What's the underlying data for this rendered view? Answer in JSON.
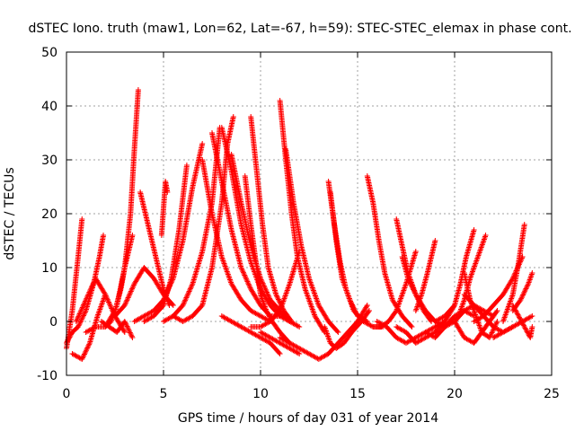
{
  "chart_data": {
    "type": "scatter",
    "title": "dSTEC Iono. truth (maw1, Lon=62, Lat=-67, h=59): STEC-STEC_elemax in phase cont.",
    "xlabel": "GPS time / hours of day 031 of year 2014",
    "ylabel": "dSTEC  / TECUs",
    "xlim": [
      0,
      25
    ],
    "ylim": [
      -10,
      50
    ],
    "xticks": [
      0,
      5,
      10,
      15,
      20,
      25
    ],
    "yticks": [
      -10,
      0,
      10,
      20,
      30,
      40,
      50
    ],
    "grid": true,
    "marker": "+",
    "color": "#ff0000",
    "arcs": [
      {
        "x": [
          0.0,
          0.3,
          0.6,
          0.8
        ],
        "y": [
          -5,
          2,
          12,
          19
        ]
      },
      {
        "x": [
          0.0,
          0.3,
          0.6,
          1.0,
          1.4,
          1.7,
          1.9
        ],
        "y": [
          -4,
          -2,
          -1,
          2,
          7,
          12,
          16
        ]
      },
      {
        "x": [
          0.3,
          0.8,
          1.2,
          1.6,
          2.0
        ],
        "y": [
          -6,
          -7,
          -4,
          1,
          5
        ]
      },
      {
        "x": [
          0.5,
          1.0,
          1.5,
          2.0,
          2.5,
          3.0
        ],
        "y": [
          0,
          4,
          8,
          5,
          1,
          -2
        ]
      },
      {
        "x": [
          1.0,
          1.5,
          2.0,
          2.3,
          2.6,
          3.0,
          3.3,
          3.5,
          3.7
        ],
        "y": [
          -2,
          -1,
          -1,
          0,
          3,
          10,
          20,
          32,
          43
        ]
      },
      {
        "x": [
          1.8,
          2.2,
          2.6,
          3.0,
          3.4
        ],
        "y": [
          0,
          -1,
          -2,
          0,
          -3
        ]
      },
      {
        "x": [
          2.0,
          2.5,
          2.8,
          3.0,
          3.2,
          3.4
        ],
        "y": [
          -1,
          2,
          6,
          10,
          13,
          16
        ]
      },
      {
        "x": [
          2.5,
          3.0,
          3.5,
          4.0,
          4.5,
          5.0,
          5.5
        ],
        "y": [
          1,
          3,
          7,
          10,
          8,
          5,
          3
        ]
      },
      {
        "x": [
          3.8,
          4.2,
          4.6,
          5.0,
          5.3
        ],
        "y": [
          24,
          18,
          12,
          6,
          3
        ]
      },
      {
        "x": [
          3.5,
          4.0,
          4.5,
          5.0,
          5.5,
          6.0,
          6.5,
          7.0
        ],
        "y": [
          0,
          1,
          2,
          4,
          8,
          15,
          25,
          33
        ]
      },
      {
        "x": [
          4.0,
          4.5,
          5.0,
          5.4,
          5.8,
          6.2
        ],
        "y": [
          0,
          1,
          3,
          8,
          17,
          29
        ]
      },
      {
        "x": [
          4.9,
          5.0,
          5.1,
          5.2
        ],
        "y": [
          16,
          21,
          26,
          24
        ]
      },
      {
        "x": [
          5.0,
          5.5,
          6.0,
          6.5,
          7.0,
          7.5,
          7.9
        ],
        "y": [
          0,
          1,
          3,
          7,
          13,
          22,
          36
        ]
      },
      {
        "x": [
          5.5,
          6.0,
          6.5,
          7.0,
          7.5,
          8.0,
          8.3,
          8.6
        ],
        "y": [
          1,
          0,
          1,
          3,
          10,
          22,
          33,
          38
        ]
      },
      {
        "x": [
          7.0,
          7.5,
          8.0,
          8.5,
          9.0,
          9.5,
          10.0,
          10.5
        ],
        "y": [
          30,
          20,
          12,
          7,
          4,
          2,
          1,
          0
        ]
      },
      {
        "x": [
          7.5,
          8.0,
          8.5,
          9.0,
          9.5,
          10.0,
          10.5,
          11.0
        ],
        "y": [
          35,
          26,
          17,
          10,
          6,
          3,
          1,
          1
        ]
      },
      {
        "x": [
          8.0,
          8.5,
          9.0,
          9.5,
          10.0,
          10.5,
          11.0,
          11.5
        ],
        "y": [
          36,
          28,
          18,
          11,
          6,
          3,
          1,
          0
        ]
      },
      {
        "x": [
          8.5,
          9.0,
          9.5,
          10.0,
          10.5,
          11.0,
          11.5,
          12.0
        ],
        "y": [
          31,
          22,
          14,
          8,
          4,
          2,
          0,
          -1
        ]
      },
      {
        "x": [
          9.2,
          9.5,
          9.8,
          10.0,
          10.3,
          10.6,
          11.0,
          11.5
        ],
        "y": [
          27,
          18,
          10,
          5,
          2,
          0,
          -2,
          -4
        ]
      },
      {
        "x": [
          9.5,
          9.8,
          10.1,
          10.4,
          10.8,
          11.2,
          11.6
        ],
        "y": [
          38,
          28,
          18,
          10,
          5,
          2,
          0
        ]
      },
      {
        "x": [
          8.0,
          8.5,
          9.0,
          9.5,
          10.0,
          10.5,
          11.0
        ],
        "y": [
          1,
          0,
          -1,
          -2,
          -3,
          -4,
          -6
        ]
      },
      {
        "x": [
          11.0,
          11.3,
          11.6,
          11.9,
          12.3,
          12.8,
          13.3
        ],
        "y": [
          41,
          30,
          20,
          12,
          6,
          1,
          -2
        ]
      },
      {
        "x": [
          11.3,
          11.7,
          12.1,
          12.5,
          13.0,
          13.5,
          14.0
        ],
        "y": [
          32,
          22,
          14,
          8,
          3,
          0,
          -2
        ]
      },
      {
        "x": [
          9.5,
          10.0,
          10.5,
          11.0,
          11.5,
          12.0
        ],
        "y": [
          -1,
          -1,
          0,
          2,
          7,
          13
        ]
      },
      {
        "x": [
          11.0,
          11.5,
          12.0,
          12.5,
          13.0,
          13.5,
          14.0,
          14.5,
          15.0,
          15.5
        ],
        "y": [
          -3,
          -4,
          -5,
          -6,
          -7,
          -6,
          -4,
          -2,
          0,
          3
        ]
      },
      {
        "x": [
          10.0,
          10.5,
          11.0,
          11.5,
          12.0
        ],
        "y": [
          -2,
          -3,
          -4,
          -5,
          -6
        ]
      },
      {
        "x": [
          13.5,
          13.8,
          14.1,
          14.4,
          14.8,
          15.3,
          15.8,
          16.3
        ],
        "y": [
          26,
          18,
          11,
          6,
          2,
          0,
          -1,
          -1
        ]
      },
      {
        "x": [
          13.3,
          13.6,
          13.9,
          14.3,
          14.7,
          15.2,
          15.6
        ],
        "y": [
          -1,
          -4,
          -5,
          -4,
          -2,
          0,
          2
        ]
      },
      {
        "x": [
          13.6,
          13.9,
          14.2,
          14.6,
          15.0,
          15.5
        ],
        "y": [
          24,
          15,
          8,
          4,
          1,
          0
        ]
      },
      {
        "x": [
          15.5,
          15.8,
          16.1,
          16.4,
          16.8,
          17.3,
          17.8
        ],
        "y": [
          27,
          22,
          15,
          9,
          4,
          1,
          -1
        ]
      },
      {
        "x": [
          15.8,
          16.2,
          16.6,
          17.0,
          17.5,
          18.0
        ],
        "y": [
          -1,
          -1,
          0,
          2,
          7,
          13
        ]
      },
      {
        "x": [
          16.0,
          16.5,
          17.0,
          17.5,
          18.0,
          18.5,
          19.0,
          19.5
        ],
        "y": [
          0,
          -1,
          -3,
          -4,
          -3,
          -2,
          -1,
          0
        ]
      },
      {
        "x": [
          17.0,
          17.3,
          17.6,
          18.0,
          18.5,
          19.0,
          19.5
        ],
        "y": [
          19,
          14,
          9,
          5,
          2,
          0,
          -1
        ]
      },
      {
        "x": [
          17.0,
          17.5,
          18.0,
          18.5,
          19.0,
          19.5,
          20.0
        ],
        "y": [
          -1,
          -2,
          -4,
          -3,
          -2,
          0,
          3
        ]
      },
      {
        "x": [
          17.3,
          17.6,
          18.0,
          18.4,
          18.8
        ],
        "y": [
          12,
          8,
          5,
          2,
          0
        ]
      },
      {
        "x": [
          18.0,
          18.3,
          18.6,
          19.0
        ],
        "y": [
          2,
          5,
          9,
          15
        ]
      },
      {
        "x": [
          18.5,
          19.0,
          19.5,
          20.0,
          20.5,
          21.0
        ],
        "y": [
          -2,
          -3,
          -1,
          1,
          2,
          1
        ]
      },
      {
        "x": [
          19.0,
          19.5,
          20.0,
          20.3,
          20.6,
          21.0
        ],
        "y": [
          0,
          1,
          3,
          7,
          12,
          17
        ]
      },
      {
        "x": [
          19.5,
          20.0,
          20.5,
          21.0,
          21.5,
          22.0
        ],
        "y": [
          -1,
          0,
          2,
          3,
          2,
          1
        ]
      },
      {
        "x": [
          20.0,
          20.5,
          21.0,
          21.4,
          21.8,
          22.2
        ],
        "y": [
          0,
          -3,
          -4,
          -2,
          0,
          2
        ]
      },
      {
        "x": [
          20.2,
          20.5,
          20.8,
          21.2,
          21.6
        ],
        "y": [
          1,
          4,
          8,
          12,
          16
        ]
      },
      {
        "x": [
          20.5,
          21.0,
          21.5,
          22.0,
          22.5,
          23.0
        ],
        "y": [
          5,
          3,
          1,
          -1,
          -2,
          -1
        ]
      },
      {
        "x": [
          20.5,
          20.8,
          21.1,
          21.4,
          21.8,
          22.2
        ],
        "y": [
          9,
          4,
          1,
          -2,
          -3,
          0
        ]
      },
      {
        "x": [
          21.0,
          21.5,
          22.0,
          22.5,
          23.0,
          23.5
        ],
        "y": [
          0,
          1,
          3,
          5,
          8,
          12
        ]
      },
      {
        "x": [
          22.0,
          22.5,
          23.0,
          23.5,
          24.0
        ],
        "y": [
          -3,
          -2,
          -1,
          0,
          1
        ]
      },
      {
        "x": [
          22.5,
          23.0,
          23.3,
          23.6
        ],
        "y": [
          0,
          5,
          11,
          18
        ]
      },
      {
        "x": [
          23.0,
          23.3,
          23.6,
          23.9,
          24.0
        ],
        "y": [
          3,
          1,
          -1,
          -3,
          -1
        ]
      },
      {
        "x": [
          23.0,
          23.4,
          23.8,
          24.0
        ],
        "y": [
          2,
          4,
          7,
          9
        ]
      }
    ]
  }
}
